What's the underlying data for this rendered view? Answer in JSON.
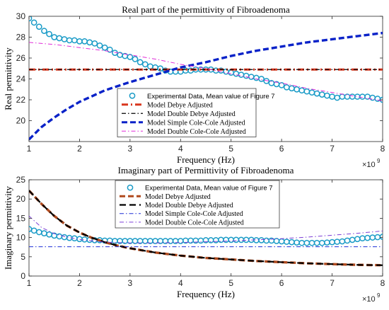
{
  "chart_data": [
    {
      "type": "line",
      "title": "Real part of the permittivity of Fibroadenoma",
      "xlabel": "Frequency (Hz)",
      "ylabel": "Real permittivity",
      "x_exponent_label": "×10",
      "x_exponent_power": "9",
      "xlim": [
        1,
        8
      ],
      "ylim": [
        18,
        30
      ],
      "x_ticks": [
        "1",
        "2",
        "3",
        "4",
        "5",
        "6",
        "7",
        "8"
      ],
      "y_ticks": [
        "20",
        "22",
        "24",
        "26",
        "28",
        "30"
      ],
      "grid": false,
      "legend_position": "center",
      "series": [
        {
          "name": "Experimental Data, Mean value of Figure 7",
          "color": "#1a9bc7",
          "style": "circles",
          "x": [
            1.0,
            1.1,
            1.2,
            1.3,
            1.4,
            1.5,
            1.6,
            1.7,
            1.8,
            1.9,
            2.0,
            2.1,
            2.2,
            2.3,
            2.4,
            2.5,
            2.6,
            2.7,
            2.8,
            2.9,
            3.0,
            3.1,
            3.2,
            3.3,
            3.4,
            3.5,
            3.6,
            3.7,
            3.8,
            3.9,
            4.0,
            4.1,
            4.2,
            4.3,
            4.4,
            4.5,
            4.6,
            4.7,
            4.8,
            4.9,
            5.0,
            5.1,
            5.2,
            5.3,
            5.4,
            5.5,
            5.6,
            5.7,
            5.8,
            5.9,
            6.0,
            6.1,
            6.2,
            6.3,
            6.4,
            6.5,
            6.6,
            6.7,
            6.8,
            6.9,
            7.0,
            7.1,
            7.2,
            7.3,
            7.4,
            7.5,
            7.6,
            7.7,
            7.8,
            7.9,
            8.0
          ],
          "y": [
            29.8,
            29.4,
            29.0,
            28.6,
            28.3,
            28.0,
            27.9,
            27.8,
            27.7,
            27.7,
            27.6,
            27.6,
            27.5,
            27.4,
            27.2,
            27.0,
            26.8,
            26.5,
            26.3,
            26.2,
            26.1,
            25.9,
            25.6,
            25.4,
            25.2,
            25.1,
            25.0,
            24.8,
            24.7,
            24.7,
            24.7,
            24.8,
            24.8,
            24.9,
            24.9,
            24.9,
            24.9,
            24.8,
            24.8,
            24.7,
            24.6,
            24.5,
            24.4,
            24.3,
            24.2,
            24.1,
            24.0,
            23.8,
            23.6,
            23.5,
            23.4,
            23.2,
            23.1,
            23.0,
            22.9,
            22.8,
            22.7,
            22.6,
            22.5,
            22.4,
            22.3,
            22.2,
            22.3,
            22.3,
            22.3,
            22.3,
            22.3,
            22.3,
            22.2,
            22.1,
            22.0
          ]
        },
        {
          "name": "Model Debye Adjusted",
          "color": "#d9361d",
          "style": "dashdot-thick",
          "x": [
            1,
            8
          ],
          "y": [
            24.9,
            24.9
          ]
        },
        {
          "name": "Model Double Debye Adjusted",
          "color": "#000000",
          "style": "dashdot",
          "x": [
            1,
            8
          ],
          "y": [
            24.9,
            24.9
          ]
        },
        {
          "name": "Model Simple Cole-Cole Adjusted",
          "color": "#0a22c8",
          "style": "dashed-thick",
          "x": [
            1.0,
            1.25,
            1.5,
            1.75,
            2.0,
            2.5,
            3.0,
            3.5,
            4.0,
            4.5,
            5.0,
            5.5,
            6.0,
            6.5,
            7.0,
            7.5,
            8.0
          ],
          "y": [
            18.2,
            19.4,
            20.3,
            21.1,
            21.8,
            22.9,
            23.7,
            24.4,
            25.1,
            25.6,
            26.2,
            26.7,
            27.1,
            27.5,
            27.8,
            28.1,
            28.4
          ]
        },
        {
          "name": "Model Double Cole-Cole Adjusted",
          "color": "#e02cd8",
          "style": "dashdot-thin",
          "x": [
            1.0,
            1.5,
            2.0,
            2.5,
            3.0,
            3.5,
            4.0,
            4.5,
            5.0,
            5.5,
            6.0,
            6.5,
            7.0,
            7.5,
            8.0
          ],
          "y": [
            27.5,
            27.3,
            27.0,
            26.7,
            26.3,
            25.9,
            25.4,
            25.0,
            24.5,
            24.0,
            23.6,
            23.1,
            22.7,
            22.3,
            21.9
          ]
        }
      ]
    },
    {
      "type": "line",
      "title": "Imaginary part of Permittivity of Fibroadenoma",
      "xlabel": "Frequency (Hz)",
      "ylabel": "Imaginary permittivity",
      "x_exponent_label": "×10",
      "x_exponent_power": "9",
      "xlim": [
        1,
        8
      ],
      "ylim": [
        0,
        25
      ],
      "x_ticks": [
        "1",
        "2",
        "3",
        "4",
        "5",
        "6",
        "7",
        "8"
      ],
      "y_ticks": [
        "0",
        "5",
        "10",
        "15",
        "20",
        "25"
      ],
      "grid": false,
      "legend_position": "top-center",
      "series": [
        {
          "name": "Experimental Data, Mean value of Figure 7",
          "color": "#1a9bc7",
          "style": "circles",
          "x": [
            1.0,
            1.1,
            1.2,
            1.3,
            1.4,
            1.5,
            1.6,
            1.7,
            1.8,
            1.9,
            2.0,
            2.1,
            2.2,
            2.3,
            2.4,
            2.5,
            2.6,
            2.7,
            2.8,
            2.9,
            3.0,
            3.1,
            3.2,
            3.3,
            3.4,
            3.5,
            3.6,
            3.7,
            3.8,
            3.9,
            4.0,
            4.1,
            4.2,
            4.3,
            4.4,
            4.5,
            4.6,
            4.7,
            4.8,
            4.9,
            5.0,
            5.1,
            5.2,
            5.3,
            5.4,
            5.5,
            5.6,
            5.7,
            5.8,
            5.9,
            6.0,
            6.1,
            6.2,
            6.3,
            6.4,
            6.5,
            6.6,
            6.7,
            6.8,
            6.9,
            7.0,
            7.1,
            7.2,
            7.3,
            7.4,
            7.5,
            7.6,
            7.7,
            7.8,
            7.9,
            8.0
          ],
          "y": [
            12.2,
            11.8,
            11.4,
            11.1,
            10.8,
            10.5,
            10.3,
            10.1,
            9.9,
            9.8,
            9.6,
            9.5,
            9.4,
            9.3,
            9.3,
            9.2,
            9.2,
            9.1,
            9.1,
            9.1,
            9.1,
            9.1,
            9.1,
            9.1,
            9.1,
            9.1,
            9.1,
            9.1,
            9.1,
            9.1,
            9.1,
            9.2,
            9.2,
            9.2,
            9.2,
            9.3,
            9.3,
            9.3,
            9.4,
            9.4,
            9.4,
            9.4,
            9.4,
            9.4,
            9.4,
            9.3,
            9.3,
            9.2,
            9.2,
            9.1,
            9.0,
            8.9,
            8.8,
            8.7,
            8.6,
            8.6,
            8.6,
            8.6,
            8.6,
            8.7,
            8.8,
            8.9,
            9.0,
            9.2,
            9.4,
            9.6,
            9.8,
            9.9,
            10.0,
            10.1,
            10.2
          ]
        },
        {
          "name": "Model Debye Adjusted",
          "color": "#b04a1e",
          "style": "dashed-thick",
          "x": [
            1.0,
            1.25,
            1.5,
            1.75,
            2.0,
            2.25,
            2.5,
            2.75,
            3.0,
            3.5,
            4.0,
            4.5,
            5.0,
            5.5,
            6.0,
            6.5,
            7.0,
            7.5,
            8.0
          ],
          "y": [
            22.2,
            18.7,
            15.6,
            13.1,
            11.3,
            9.9,
            8.8,
            7.9,
            7.2,
            6.1,
            5.3,
            4.7,
            4.3,
            3.9,
            3.6,
            3.3,
            3.1,
            2.9,
            2.8
          ]
        },
        {
          "name": "Model Double Debye Adjusted",
          "color": "#000000",
          "style": "dashed",
          "x": [
            1.0,
            1.25,
            1.5,
            1.75,
            2.0,
            2.25,
            2.5,
            2.75,
            3.0,
            3.5,
            4.0,
            4.5,
            5.0,
            5.5,
            6.0,
            6.5,
            7.0,
            7.5,
            8.0
          ],
          "y": [
            22.2,
            18.7,
            15.6,
            13.1,
            11.3,
            9.9,
            8.8,
            7.9,
            7.2,
            6.1,
            5.3,
            4.7,
            4.3,
            3.9,
            3.6,
            3.3,
            3.1,
            2.9,
            2.8
          ]
        },
        {
          "name": "Model Simple Cole-Cole Adjusted",
          "color": "#1d2ed6",
          "style": "dashdot-thin",
          "x": [
            1,
            8
          ],
          "y": [
            7.6,
            7.6
          ]
        },
        {
          "name": "Model Double Cole-Cole Adjusted",
          "color": "#7c3fd6",
          "style": "dashdot-thin",
          "x": [
            1.0,
            1.25,
            1.5,
            1.75,
            2.0,
            2.5,
            3.0,
            3.5,
            4.0,
            4.5,
            5.0,
            5.5,
            6.0,
            6.5,
            7.0,
            7.5,
            8.0
          ],
          "y": [
            15.6,
            12.6,
            11.0,
            10.1,
            9.5,
            8.8,
            8.6,
            8.6,
            8.7,
            8.9,
            9.1,
            9.4,
            9.7,
            10.1,
            10.6,
            11.1,
            11.7
          ]
        }
      ]
    }
  ]
}
